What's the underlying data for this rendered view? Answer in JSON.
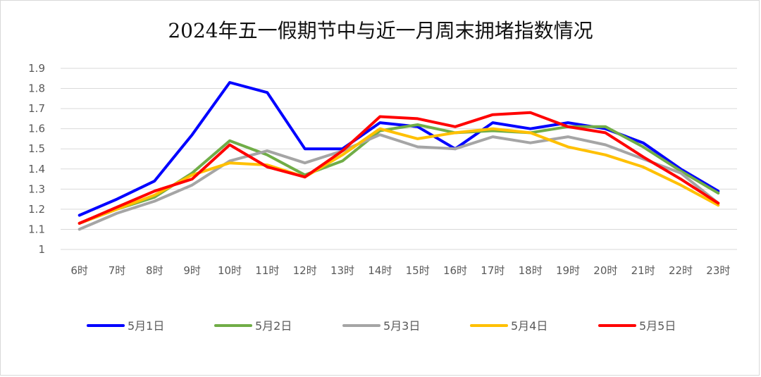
{
  "chart_data": {
    "type": "line",
    "title": "2024年五一假期节中与近一月周末拥堵指数情况",
    "xlabel": "",
    "ylabel": "",
    "ylim": [
      1,
      1.9
    ],
    "yticks": [
      "1",
      "1.1",
      "1.2",
      "1.3",
      "1.4",
      "1.5",
      "1.6",
      "1.7",
      "1.8",
      "1.9"
    ],
    "grid": true,
    "legend_position": "bottom",
    "categories": [
      "6时",
      "7时",
      "8时",
      "9时",
      "10时",
      "11时",
      "12时",
      "13时",
      "14时",
      "15时",
      "16时",
      "17时",
      "18时",
      "19时",
      "20时",
      "21时",
      "22时",
      "23时"
    ],
    "series": [
      {
        "name": "5月1日",
        "color": "#0000ff",
        "values": [
          1.17,
          1.25,
          1.34,
          1.57,
          1.83,
          1.78,
          1.5,
          1.5,
          1.63,
          1.61,
          1.5,
          1.63,
          1.6,
          1.63,
          1.6,
          1.53,
          1.4,
          1.29
        ]
      },
      {
        "name": "5月2日",
        "color": "#70ad47",
        "values": [
          1.13,
          1.2,
          1.26,
          1.38,
          1.54,
          1.47,
          1.37,
          1.44,
          1.59,
          1.62,
          1.58,
          1.59,
          1.58,
          1.61,
          1.61,
          1.51,
          1.39,
          1.28
        ]
      },
      {
        "name": "5月3日",
        "color": "#a5a5a5",
        "values": [
          1.1,
          1.18,
          1.24,
          1.32,
          1.44,
          1.49,
          1.43,
          1.49,
          1.57,
          1.51,
          1.5,
          1.56,
          1.53,
          1.56,
          1.52,
          1.45,
          1.38,
          1.23
        ]
      },
      {
        "name": "5月4日",
        "color": "#ffc000",
        "values": [
          1.13,
          1.2,
          1.27,
          1.37,
          1.43,
          1.42,
          1.36,
          1.47,
          1.6,
          1.55,
          1.58,
          1.6,
          1.58,
          1.51,
          1.47,
          1.41,
          1.32,
          1.22
        ]
      },
      {
        "name": "5月5日",
        "color": "#ff0000",
        "values": [
          1.13,
          1.21,
          1.29,
          1.35,
          1.52,
          1.41,
          1.36,
          1.49,
          1.66,
          1.65,
          1.61,
          1.67,
          1.68,
          1.61,
          1.58,
          1.46,
          1.35,
          1.23
        ]
      }
    ]
  }
}
